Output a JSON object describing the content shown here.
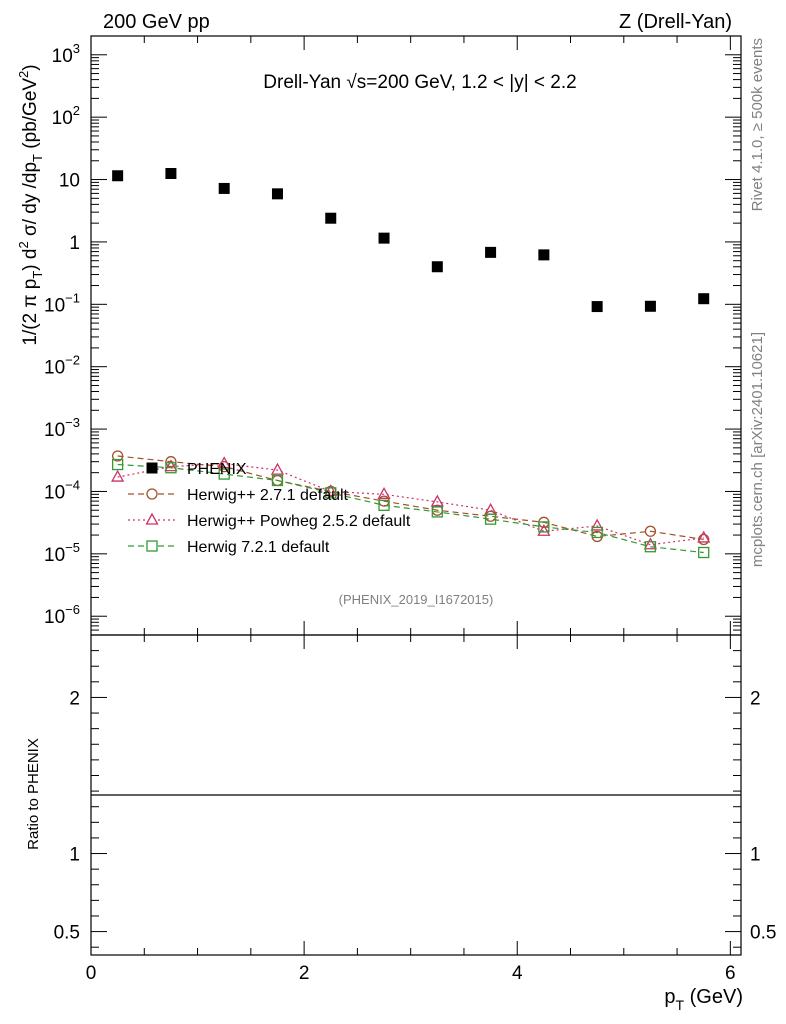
{
  "header": {
    "left": "200 GeV pp",
    "right": "Z (Drell-Yan)"
  },
  "side_labels": {
    "rivet": "Rivet 4.1.0, ≥ 500k events",
    "mcplots": "mcplots.cern.ch [arXiv:2401.10621]"
  },
  "chart_data": {
    "type": "scatter",
    "title": "Drell-Yan √s=200 GeV,  1.2 < |y| < 2.2",
    "analysis_id": "(PHENIX_2019_I1672015)",
    "xlabel": "p_T (GeV)",
    "xlabel_main": "p",
    "xlabel_sub": "T",
    "xlabel_unit": " (GeV)",
    "ylabel": "1/(2 π p_T) d²σ/ dy /dp_T (pb/GeV²)",
    "ylabel_parts": {
      "a": "1/(2 π p",
      "sub1": "T",
      "b": ") d",
      "sup1": "2",
      "c": " σ/ dy /dp",
      "sub2": "T",
      "d": " (pb/GeV",
      "sup2": "2",
      "e": ")"
    },
    "ratio_ylabel": "Ratio to PHENIX",
    "xlim": [
      0,
      6.1
    ],
    "ylim": [
      5e-07,
      2000.0
    ],
    "ratio_ylim": [
      0.35,
      2.4
    ],
    "x_ticks": [
      "0",
      "2",
      "4",
      "6"
    ],
    "y_ticks": [
      {
        "v": 1000,
        "label": "10",
        "exp": "3"
      },
      {
        "v": 100,
        "label": "10",
        "exp": "2"
      },
      {
        "v": 10,
        "label": "10",
        "exp": ""
      },
      {
        "v": 1,
        "label": "1",
        "exp": ""
      },
      {
        "v": 0.1,
        "label": "10",
        "exp": "−1"
      },
      {
        "v": 0.01,
        "label": "10",
        "exp": "−2"
      },
      {
        "v": 0.001,
        "label": "10",
        "exp": "−3"
      },
      {
        "v": 0.0001,
        "label": "10",
        "exp": "−4"
      },
      {
        "v": 1e-05,
        "label": "10",
        "exp": "−5"
      },
      {
        "v": 1e-06,
        "label": "10",
        "exp": "−6"
      }
    ],
    "ratio_ticks": [
      "2",
      "1",
      "0.5"
    ],
    "x": [
      0.25,
      0.75,
      1.25,
      1.75,
      2.25,
      2.75,
      3.25,
      3.75,
      4.25,
      4.75,
      5.25,
      5.75
    ],
    "series": [
      {
        "name": "PHENIX",
        "marker": "filled-square",
        "color": "#000000",
        "values": [
          11.5,
          12.5,
          7.2,
          5.9,
          2.4,
          1.15,
          0.4,
          0.68,
          0.62,
          0.092,
          0.093,
          0.123
        ]
      },
      {
        "name": "Herwig++ 2.7.1 default",
        "marker": "open-circle",
        "line": "dashed",
        "color": "#a0522d",
        "values": [
          0.00037,
          0.0003,
          0.00025,
          0.00015,
          0.0001,
          7e-05,
          5e-05,
          4e-05,
          3.2e-05,
          1.9e-05,
          2.3e-05,
          1.7e-05
        ]
      },
      {
        "name": "Herwig++ Powheg 2.5.2 default",
        "marker": "open-triangle",
        "line": "dotted",
        "color": "#cc3366",
        "values": [
          0.00017,
          0.00025,
          0.00028,
          0.00022,
          0.0001,
          9e-05,
          6.8e-05,
          5e-05,
          2.3e-05,
          2.8e-05,
          1.4e-05,
          1.8e-05
        ]
      },
      {
        "name": "Herwig 7.2.1 default",
        "marker": "open-square",
        "line": "dashed",
        "color": "#339933",
        "values": [
          0.00027,
          0.00024,
          0.00019,
          0.00015,
          9.5e-05,
          6e-05,
          4.7e-05,
          3.6e-05,
          2.7e-05,
          2.2e-05,
          1.3e-05,
          1.05e-05
        ]
      }
    ],
    "legend_position": "middle-left"
  }
}
